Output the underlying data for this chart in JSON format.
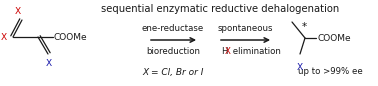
{
  "title": "sequential enzymatic reductive dehalogenation",
  "title_fontsize": 7.2,
  "background_color": "#ffffff",
  "arrow_label1_top": "ene-reductase",
  "arrow_label1_bot": "bioreduction",
  "arrow_label2_top": "spontaneous",
  "arrow_label2_bot_H": "H",
  "arrow_label2_bot_X": "X",
  "arrow_label2_bot_rest": " elimination",
  "x_label": "X = Cl, Br or I",
  "ee_label": "up to >99% ee",
  "label_fontsize": 6.2,
  "red": "#cc0000",
  "blue": "#1a1aaa",
  "black": "#1a1a1a"
}
